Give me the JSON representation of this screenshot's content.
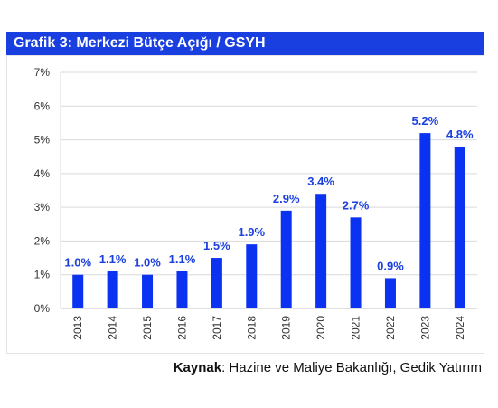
{
  "title": "Grafik 3: Merkezi Bütçe Açığı / GSYH",
  "source": {
    "label": "Kaynak",
    "separator": ": ",
    "text": "Hazine ve Maliye Bakanlığı, Gedik Yatırım"
  },
  "colors": {
    "bar": "#0a32f0",
    "title_bg": "#1a3fe0",
    "label": "#1a3fe0",
    "grid": "#d9d9d9",
    "axis_text": "#333333"
  },
  "chart_data": {
    "type": "bar",
    "title": "Grafik 3: Merkezi Bütçe Açığı / GSYH",
    "categories": [
      "2013",
      "2014",
      "2015",
      "2016",
      "2017",
      "2018",
      "2019",
      "2020",
      "2021",
      "2022",
      "2023",
      "2024"
    ],
    "values": [
      1.0,
      1.1,
      1.0,
      1.1,
      1.5,
      1.9,
      2.9,
      3.4,
      2.7,
      0.9,
      5.2,
      4.8
    ],
    "data_labels": [
      "1.0%",
      "1.1%",
      "1.0%",
      "1.1%",
      "1.5%",
      "1.9%",
      "2.9%",
      "3.4%",
      "2.7%",
      "0.9%",
      "5.2%",
      "4.8%"
    ],
    "ylim": [
      0,
      7
    ],
    "yticks": [
      0,
      1,
      2,
      3,
      4,
      5,
      6,
      7
    ],
    "ytick_labels": [
      "0%",
      "1%",
      "2%",
      "3%",
      "4%",
      "5%",
      "6%",
      "7%"
    ],
    "xlabel": "",
    "ylabel": "",
    "grid": true,
    "legend": "none"
  }
}
